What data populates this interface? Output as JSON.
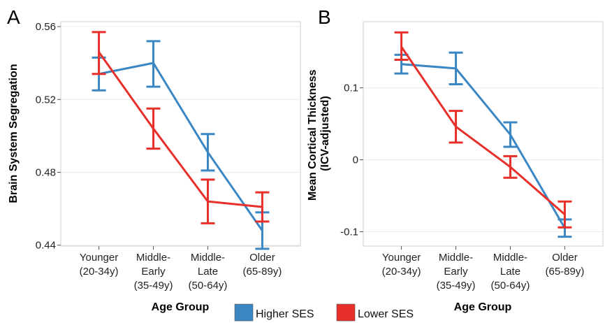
{
  "legend": [
    {
      "label": "Higher SES",
      "color": "#3b87c4"
    },
    {
      "label": "Lower SES",
      "color": "#e8302a"
    }
  ],
  "chart_data": [
    {
      "panel": "A",
      "type": "line",
      "x": [
        [
          "Younger",
          "(20-34y)"
        ],
        [
          "Middle-",
          "Early",
          "(35-49y)"
        ],
        [
          "Middle-",
          "Late",
          "(50-64y)"
        ],
        [
          "Older",
          "(65-89y)"
        ]
      ],
      "xlabel": "Age Group",
      "ylabel": "Brain System Segregation",
      "ylim": [
        0.4395,
        0.5627
      ],
      "yticks": [
        0.44,
        0.48,
        0.52,
        0.56
      ],
      "ytick_labels": [
        "0.44",
        "0.48",
        "0.52",
        "0.56"
      ],
      "error_bars": true,
      "series": [
        {
          "name": "Higher SES",
          "color": "#3b87c4",
          "values": [
            0.534,
            0.54,
            0.491,
            0.448
          ],
          "lower": [
            0.525,
            0.527,
            0.481,
            0.438
          ],
          "upper": [
            0.543,
            0.552,
            0.501,
            0.458
          ]
        },
        {
          "name": "Lower SES",
          "color": "#e8302a",
          "values": [
            0.546,
            0.504,
            0.464,
            0.461
          ],
          "lower": [
            0.534,
            0.493,
            0.452,
            0.453
          ],
          "upper": [
            0.557,
            0.515,
            0.476,
            0.469
          ]
        }
      ]
    },
    {
      "panel": "B",
      "type": "line",
      "x": [
        [
          "Younger",
          "(20-34y)"
        ],
        [
          "Middle-",
          "Early",
          "(35-49y)"
        ],
        [
          "Middle-",
          "Late",
          "(50-64y)"
        ],
        [
          "Older",
          "(65-89y)"
        ]
      ],
      "xlabel": "Age Group",
      "ylabel": "Mean Cortical Thickness\n(ICV-adjusted)",
      "ylabel_lines": [
        "Mean Cortical Thickness",
        "(ICV-adjusted)"
      ],
      "ylim": [
        -0.12,
        0.192
      ],
      "yticks": [
        -0.1,
        0,
        0.1
      ],
      "ytick_labels": [
        "-0.1",
        "0",
        "0.1"
      ],
      "error_bars": true,
      "series": [
        {
          "name": "Higher SES",
          "color": "#3b87c4",
          "values": [
            0.133,
            0.127,
            0.035,
            -0.095
          ],
          "lower": [
            0.12,
            0.105,
            0.018,
            -0.107
          ],
          "upper": [
            0.146,
            0.149,
            0.052,
            -0.083
          ]
        },
        {
          "name": "Lower SES",
          "color": "#e8302a",
          "values": [
            0.157,
            0.046,
            -0.01,
            -0.076
          ],
          "lower": [
            0.139,
            0.024,
            -0.025,
            -0.094
          ],
          "upper": [
            0.177,
            0.068,
            0.005,
            -0.058
          ]
        }
      ]
    }
  ]
}
